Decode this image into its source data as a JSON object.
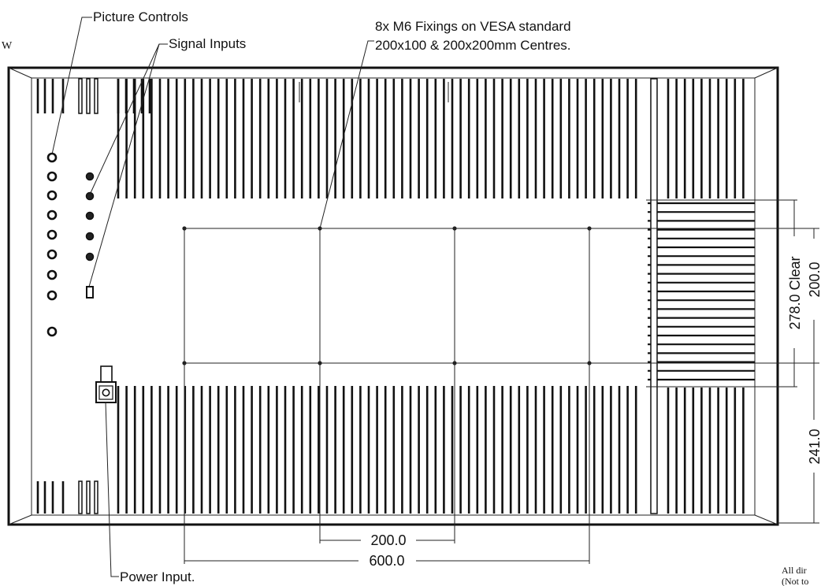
{
  "labels": {
    "picture_controls": "Picture Controls",
    "signal_inputs": "Signal Inputs",
    "vesa_line1": "8x M6 Fixings on VESA standard",
    "vesa_line2": "200x100 & 200x200mm Centres.",
    "power_input": "Power Input.",
    "corner_mark": "W",
    "note_line1": "All dir",
    "note_line2": "(Not to"
  },
  "dimensions": {
    "width_inner": "200.0",
    "width_outer": "600.0",
    "height_clear": "278.0 Clear",
    "height_vesa": "200.0",
    "height_lower": "241.0"
  },
  "colors": {
    "line": "#111111",
    "background": "#ffffff"
  },
  "picture_controls_count": 9,
  "signal_input_sockets": 5
}
